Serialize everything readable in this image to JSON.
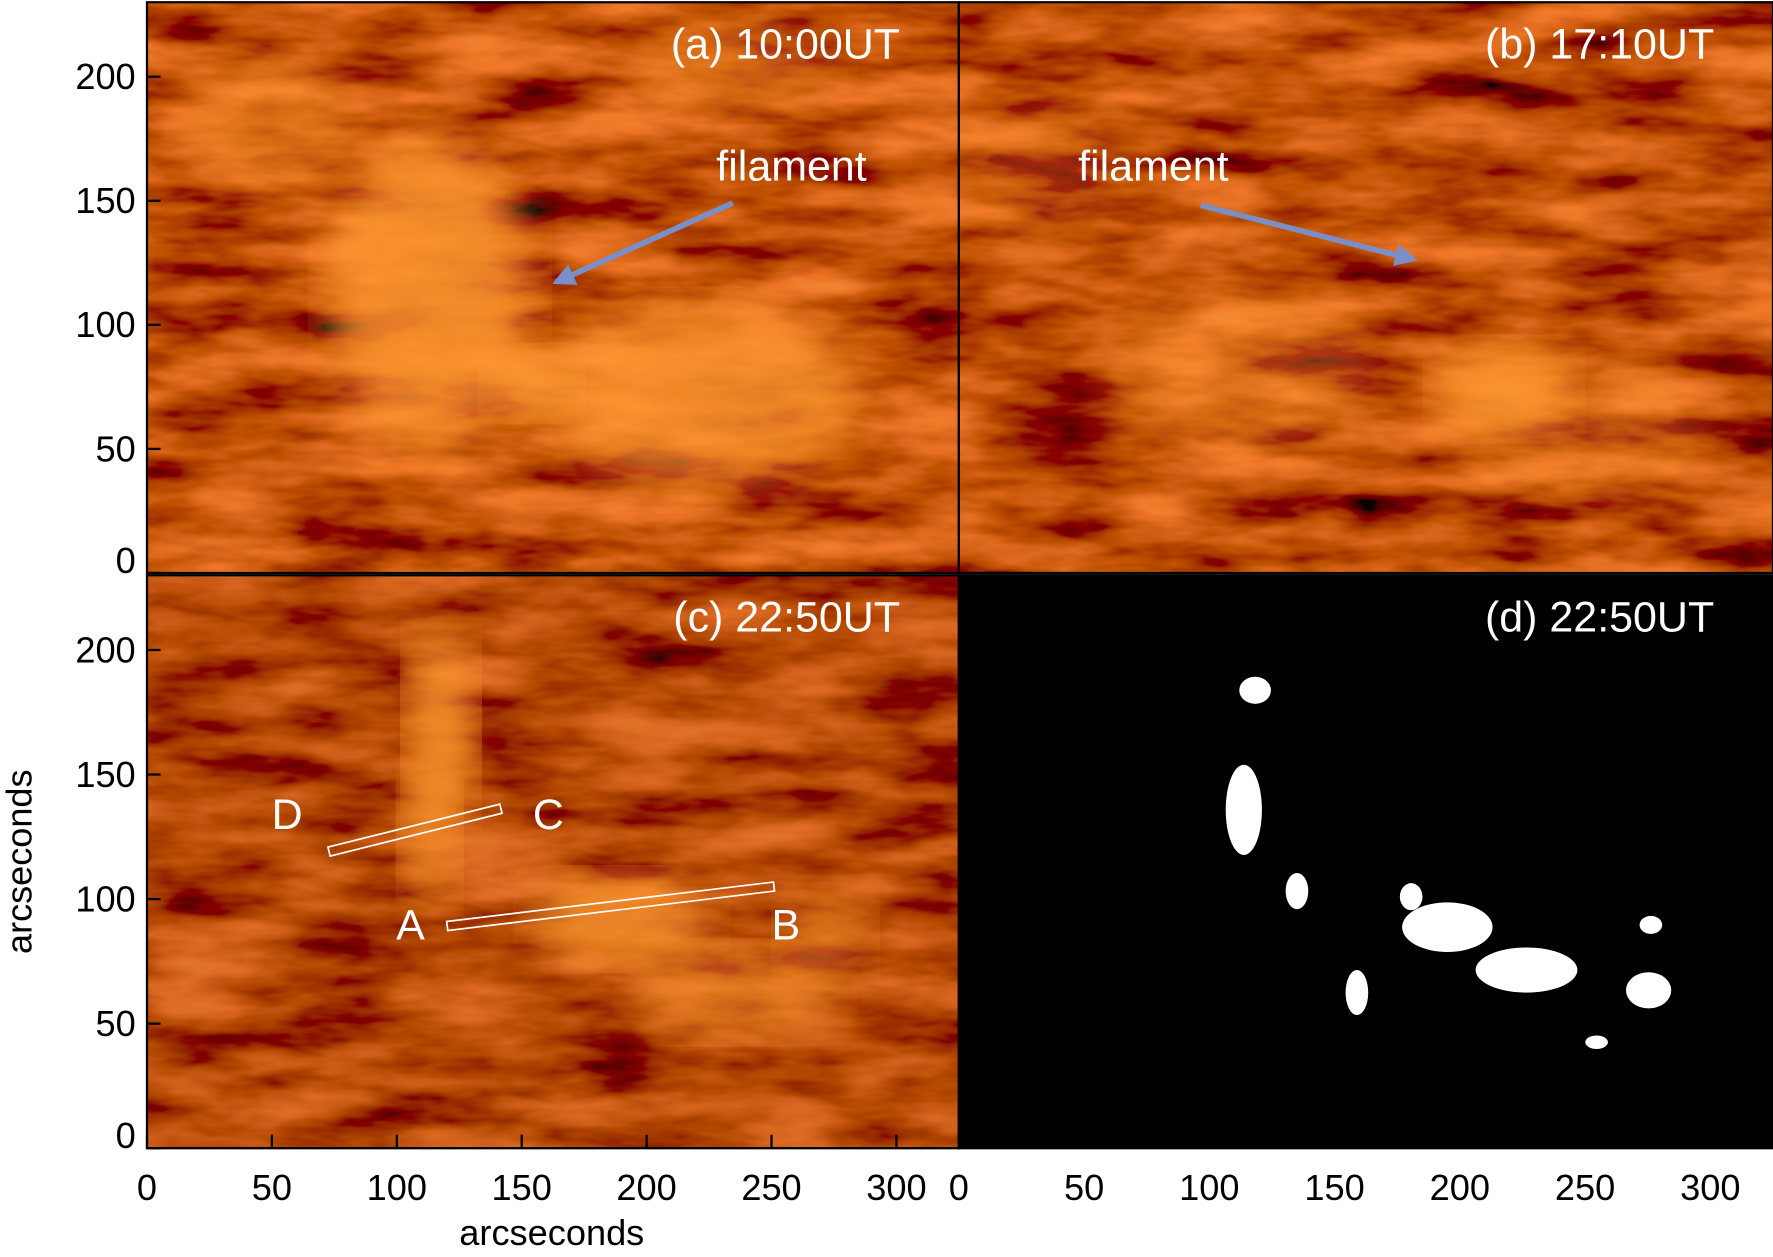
{
  "chart_data": [
    {
      "type": "image",
      "title": "(a) 10:00UT",
      "annotations": [
        "filament"
      ],
      "xlim": [
        0,
        325
      ],
      "ylim": [
        0,
        230
      ],
      "yticks": [
        0,
        50,
        100,
        150,
        200
      ]
    },
    {
      "type": "image",
      "title": "(b) 17:10UT",
      "annotations": [
        "filament"
      ],
      "xlim": [
        0,
        325
      ],
      "ylim": [
        0,
        230
      ]
    },
    {
      "type": "image",
      "title": "(c) 22:50UT",
      "annotations": [
        "D",
        "C",
        "A",
        "B"
      ],
      "xlabel": "arcseconds",
      "ylabel": "arcseconds",
      "xlim": [
        0,
        325
      ],
      "ylim": [
        0,
        230
      ],
      "xticks": [
        0,
        50,
        100,
        150,
        200,
        250,
        300
      ],
      "yticks": [
        0,
        50,
        100,
        150,
        200
      ]
    },
    {
      "type": "mask",
      "title": "(d) 22:50UT",
      "xlim": [
        0,
        325
      ],
      "ylim": [
        0,
        230
      ],
      "xticks": [
        0,
        50,
        100,
        150,
        200,
        250,
        300
      ]
    }
  ]
}
